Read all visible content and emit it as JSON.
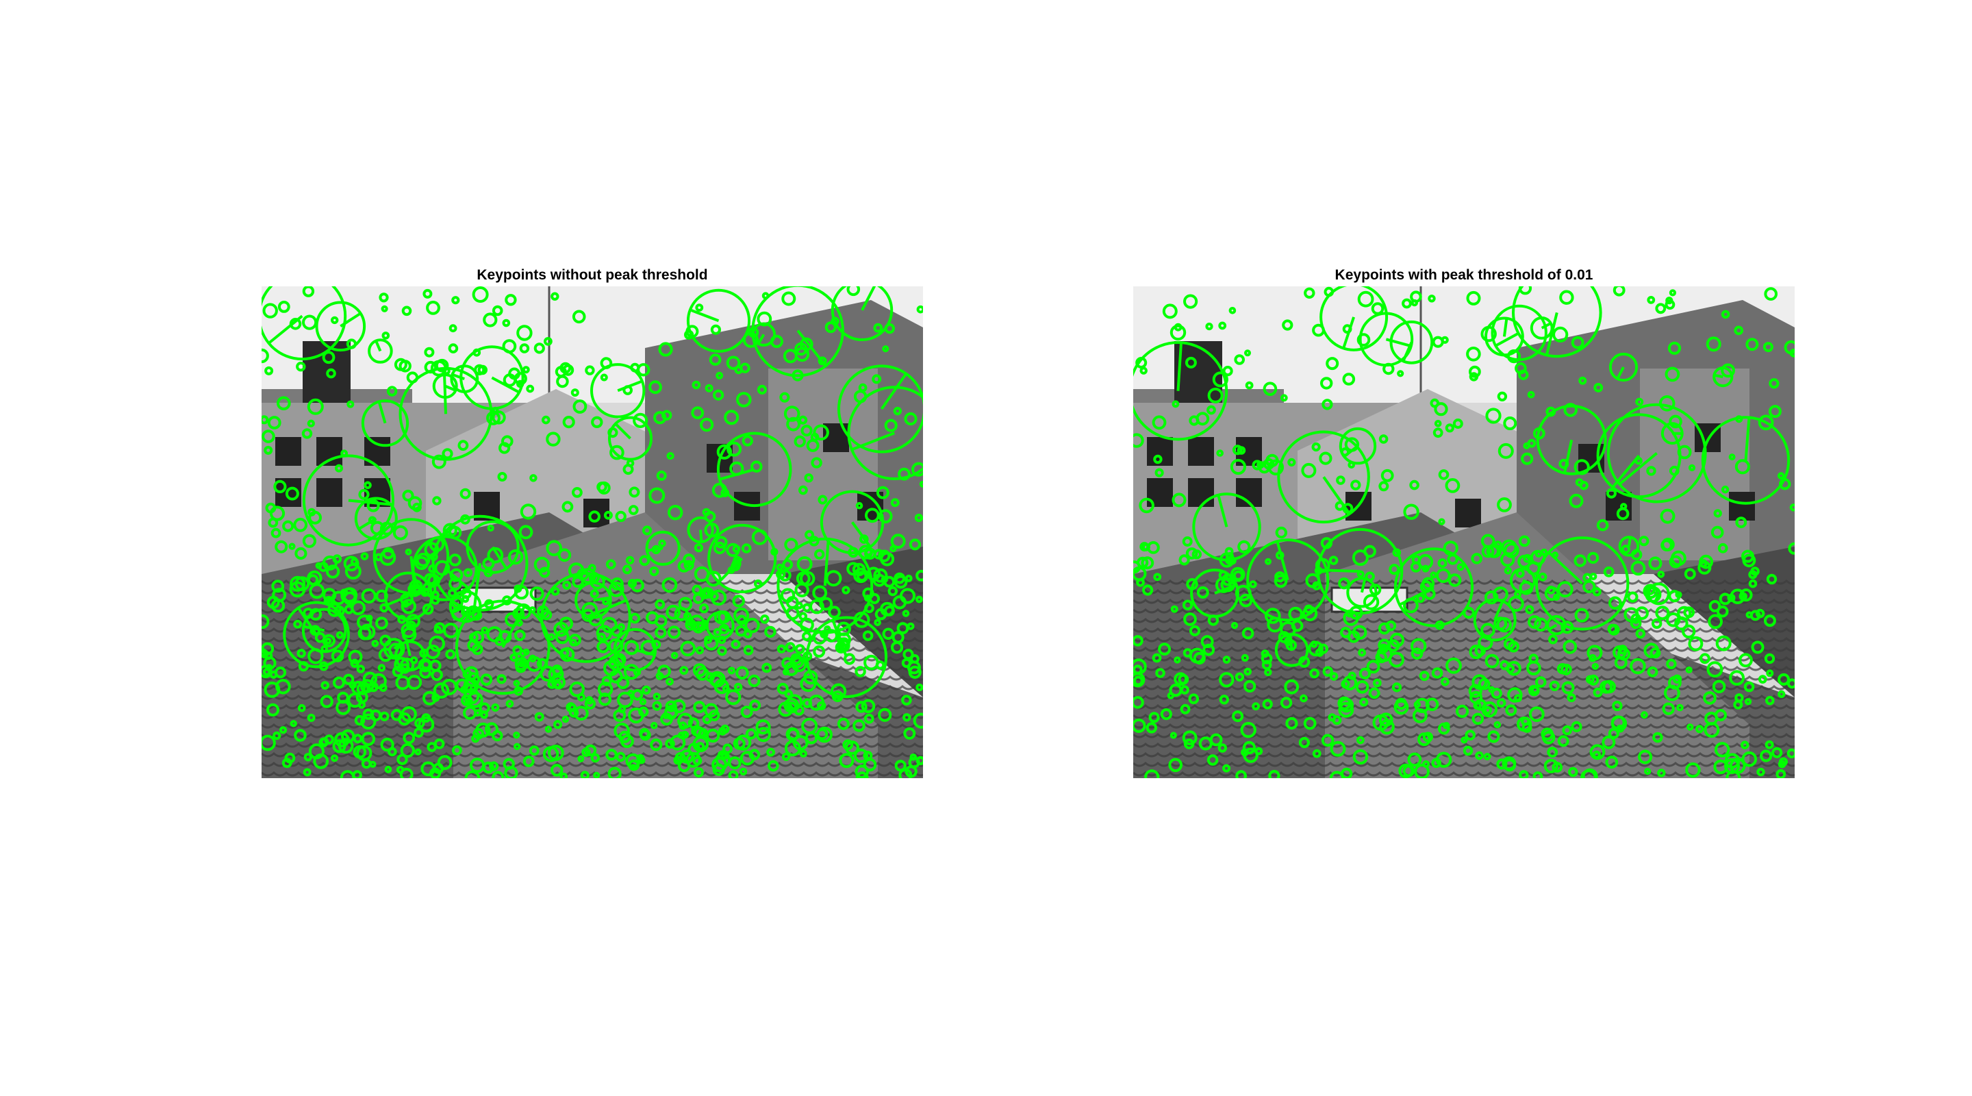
{
  "figure": {
    "panels": [
      {
        "title": "Keypoints without peak threshold",
        "keypoint_color": "#00ff00",
        "keypoint_density": "high"
      },
      {
        "title": "Keypoints with peak threshold of 0.01",
        "keypoint_color": "#00ff00",
        "keypoint_density": "medium"
      }
    ],
    "image_description_style": "grayscale"
  }
}
